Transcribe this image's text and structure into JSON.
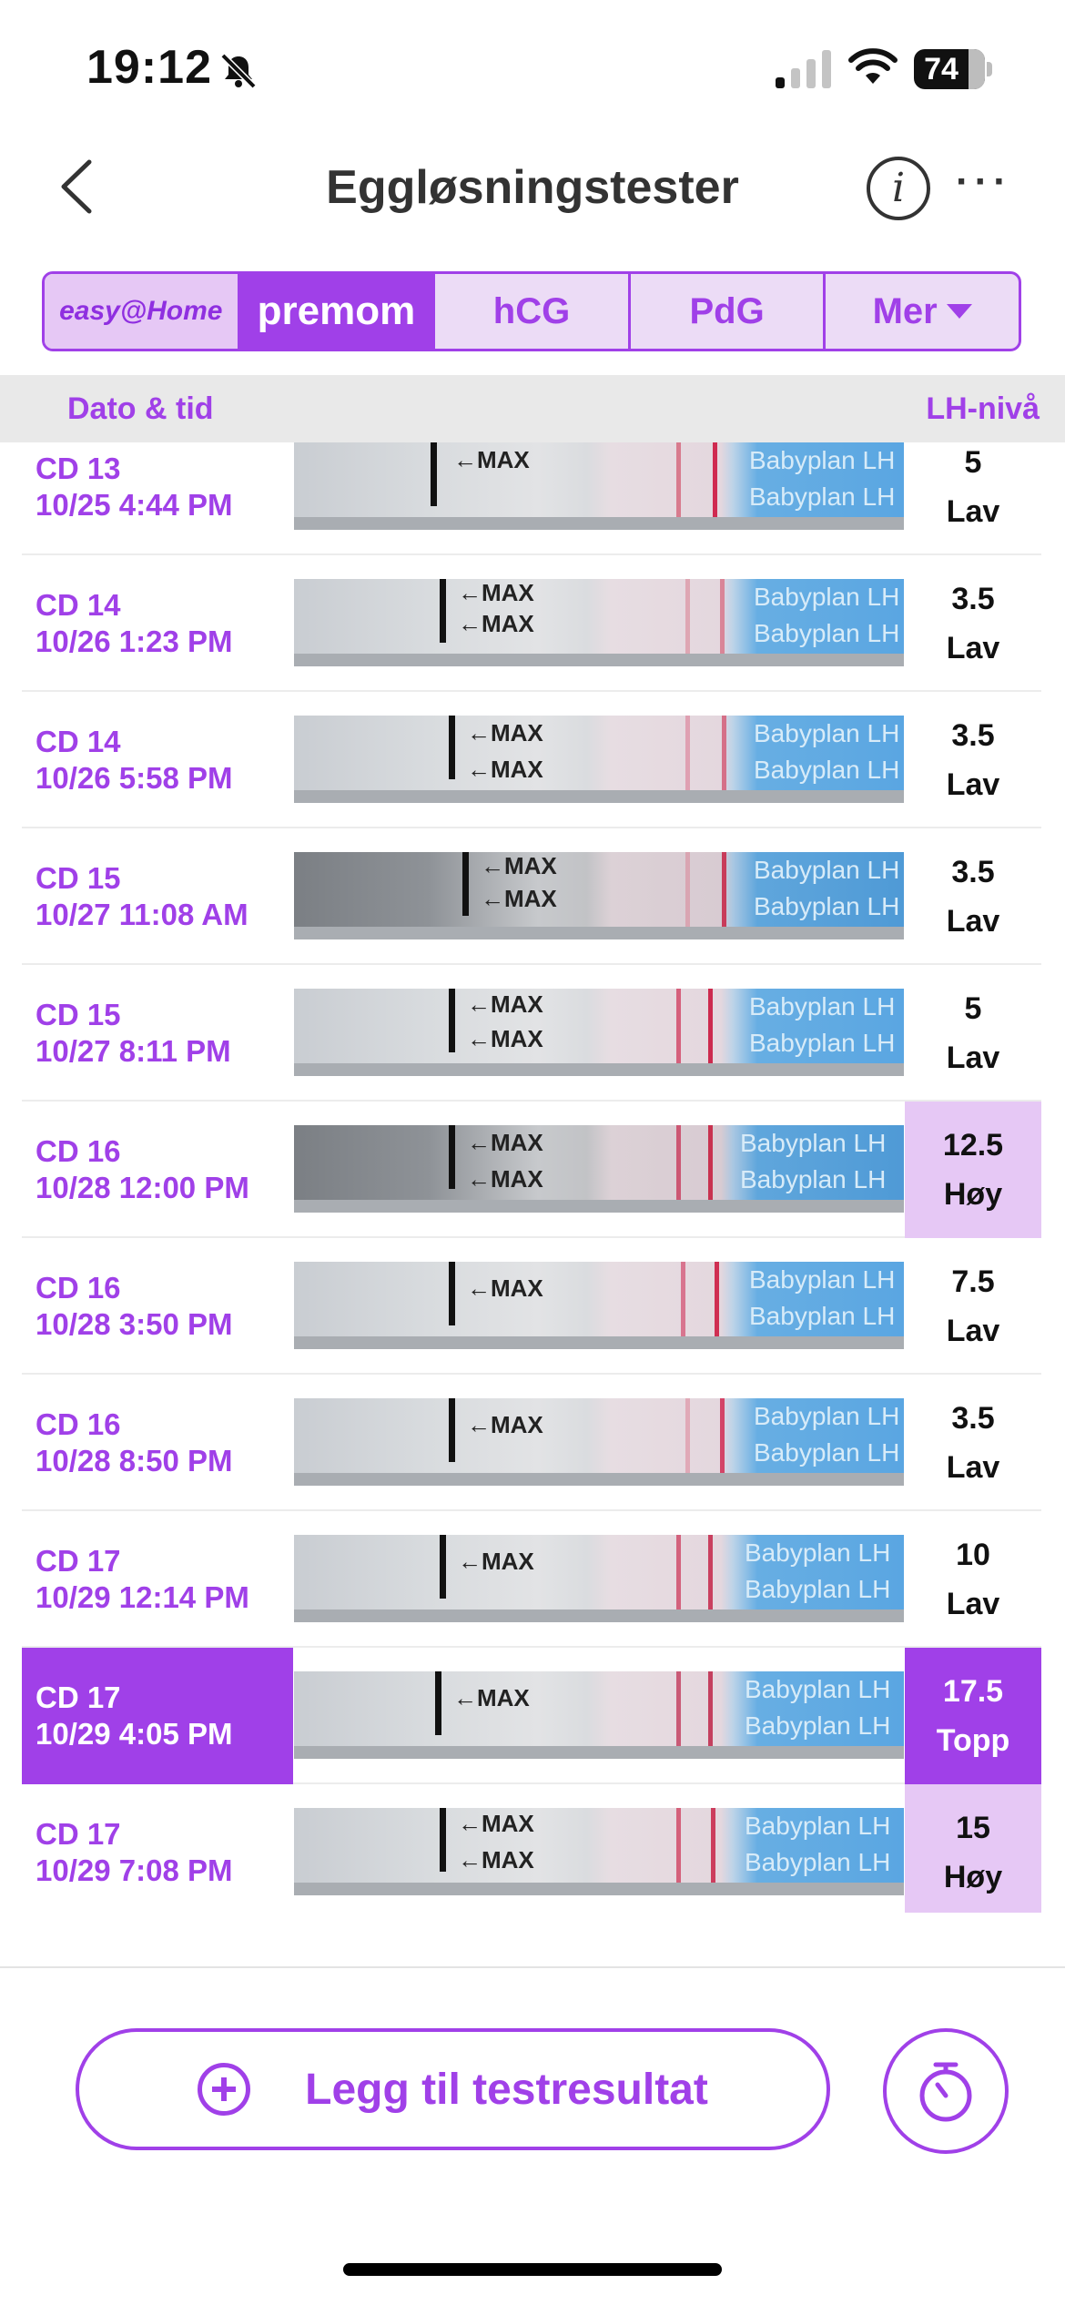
{
  "status_bar": {
    "time": "19:12",
    "battery": "74",
    "icons": [
      "bell-slash-icon",
      "signal-icon",
      "wifi-icon",
      "battery-icon"
    ]
  },
  "header": {
    "title": "Eggløsningstester",
    "back_icon": "chevron-left-icon",
    "info_icon": "info-icon",
    "more_icon": "more-icon"
  },
  "tabs": [
    {
      "label": "easy@Home",
      "active": false
    },
    {
      "label": "premom",
      "active": true
    },
    {
      "label": "hCG",
      "active": false
    },
    {
      "label": "PdG",
      "active": false
    },
    {
      "label": "Mer",
      "active": false
    }
  ],
  "table": {
    "col_date": "Dato & tid",
    "col_level": "LH-nivå",
    "strip_text": {
      "max": "←MAX",
      "brand": "Babyplan LH",
      "brand_short": "Babyplan"
    },
    "rows": [
      {
        "cd": "CD 13",
        "datetime": "10/25 4:44 PM",
        "value": "5",
        "level": "Lav"
      },
      {
        "cd": "CD 14",
        "datetime": "10/26 1:23 PM",
        "value": "3.5",
        "level": "Lav"
      },
      {
        "cd": "CD 14",
        "datetime": "10/26 5:58 PM",
        "value": "3.5",
        "level": "Lav"
      },
      {
        "cd": "CD 15",
        "datetime": "10/27 11:08 AM",
        "value": "3.5",
        "level": "Lav"
      },
      {
        "cd": "CD 15",
        "datetime": "10/27 8:11 PM",
        "value": "5",
        "level": "Lav"
      },
      {
        "cd": "CD 16",
        "datetime": "10/28 12:00 PM",
        "value": "12.5",
        "level": "Høy"
      },
      {
        "cd": "CD 16",
        "datetime": "10/28 3:50 PM",
        "value": "7.5",
        "level": "Lav"
      },
      {
        "cd": "CD 16",
        "datetime": "10/28 8:50 PM",
        "value": "3.5",
        "level": "Lav"
      },
      {
        "cd": "CD 17",
        "datetime": "10/29 12:14 PM",
        "value": "10",
        "level": "Lav"
      },
      {
        "cd": "CD 17",
        "datetime": "10/29 4:05 PM",
        "value": "17.5",
        "level": "Topp"
      },
      {
        "cd": "CD 17",
        "datetime": "10/29 7:08 PM",
        "value": "15",
        "level": "Høy"
      }
    ]
  },
  "actions": {
    "add_label": "Legg til testresultat",
    "add_icon": "plus-circle-icon",
    "timer_icon": "timer-icon"
  },
  "colors": {
    "accent": "#a040e8",
    "accent_light": "#e6c8f5",
    "header_bg": "#e9e9e9"
  }
}
